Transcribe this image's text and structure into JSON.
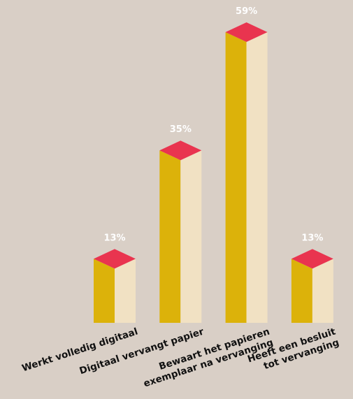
{
  "chart_data": {
    "type": "bar",
    "categories": [
      [
        "Werkt volledig digitaal"
      ],
      [
        "Digitaal vervangt papier"
      ],
      [
        "Bewaart het papieren",
        "exemplaar na vervanging"
      ],
      [
        "Heeft een besluit",
        "tot vervanging"
      ]
    ],
    "values": [
      13,
      35,
      59,
      13
    ],
    "value_labels": [
      "13%",
      "35%",
      "59%",
      "13%"
    ],
    "ylim": [
      0,
      59
    ],
    "grid": false,
    "colors": {
      "background": "#d9cfc6",
      "bar_front": "#dcb20a",
      "bar_side": "#f1e1c3",
      "bar_top": "#e9344f",
      "value_label": "#ffffff",
      "category_label": "#111111"
    }
  }
}
